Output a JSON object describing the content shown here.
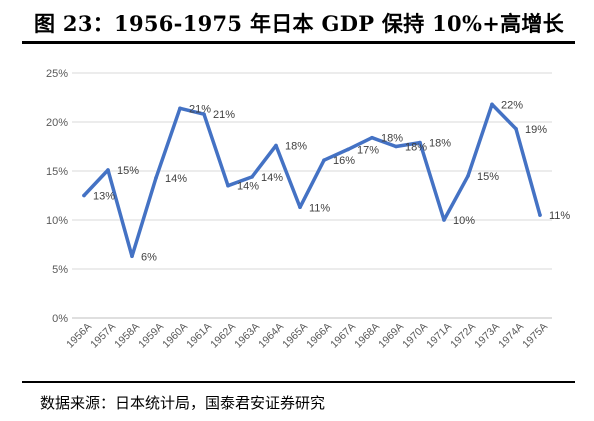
{
  "figure": {
    "title": "图 23：1956-1975 年日本 GDP 保持 10%+高增长",
    "source": "数据来源：日本统计局，国泰君安证券研究"
  },
  "chart_data": {
    "type": "line",
    "title": "",
    "xlabel": "",
    "ylabel": "",
    "categories": [
      "1956A",
      "1957A",
      "1958A",
      "1959A",
      "1960A",
      "1961A",
      "1962A",
      "1963A",
      "1964A",
      "1965A",
      "1966A",
      "1967A",
      "1968A",
      "1969A",
      "1970A",
      "1971A",
      "1972A",
      "1973A",
      "1974A",
      "1975A"
    ],
    "series": [
      {
        "values": [
          12.5,
          15.1,
          6.3,
          14.3,
          21.4,
          20.8,
          13.5,
          14.4,
          17.6,
          11.3,
          16.1,
          17.2,
          18.4,
          17.5,
          17.9,
          10.0,
          14.5,
          21.8,
          19.3,
          10.5
        ],
        "labels": [
          "13%",
          "15%",
          "6%",
          "14%",
          "21%",
          "21%",
          "14%",
          "14%",
          "18%",
          "11%",
          "16%",
          "17%",
          "18%",
          "18%",
          "18%",
          "10%",
          "15%",
          "22%",
          "19%",
          "11%"
        ],
        "color": "#4472c4"
      }
    ],
    "ylim": [
      0,
      25
    ],
    "yticks": [
      0,
      5,
      10,
      15,
      20,
      25
    ],
    "ytick_labels": [
      "0%",
      "5%",
      "10%",
      "15%",
      "20%",
      "25%"
    ],
    "grid": true,
    "gridline_color": "#d9d9d9",
    "legend": false
  }
}
